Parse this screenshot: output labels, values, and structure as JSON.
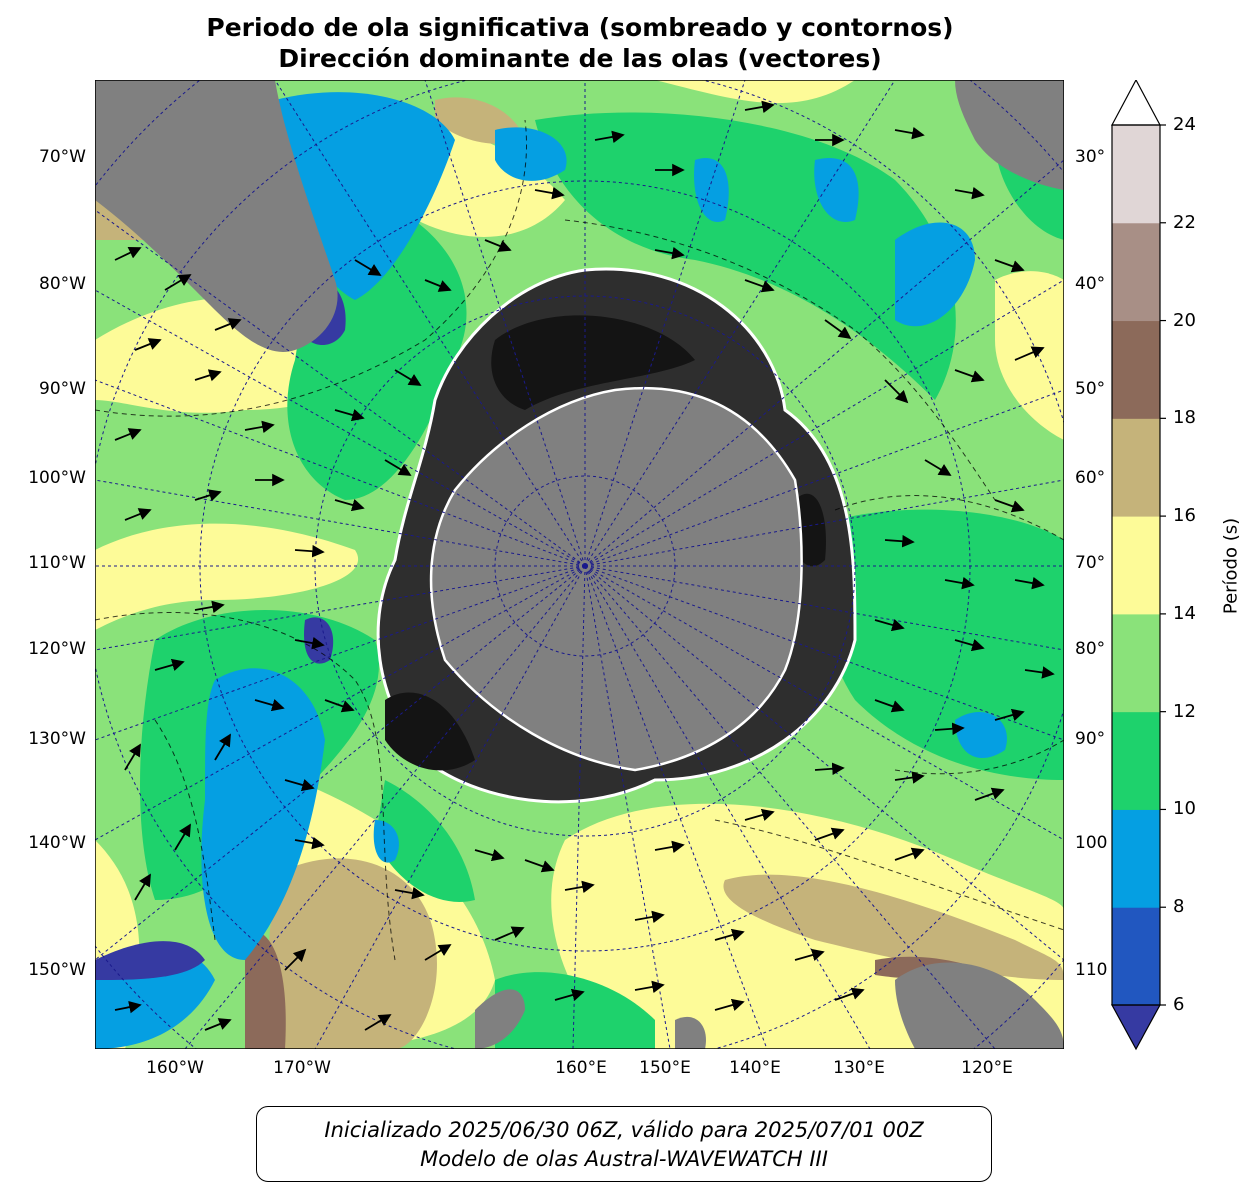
{
  "title": {
    "line1": "Periodo de ola significativa (sombreado y contornos)",
    "line2": "Dirección dominante de las olas (vectores)"
  },
  "map": {
    "projection": "south-polar-stereographic",
    "lat_labels_left": [
      "70°W",
      "80°W",
      "90°W",
      "100°W",
      "110°W",
      "120°W",
      "130°W",
      "140°W",
      "150°W"
    ],
    "lat_labels_right": [
      "30°",
      "40°",
      "50°",
      "60°",
      "70°",
      "80°",
      "90°",
      "100",
      "110"
    ],
    "lon_labels_bottom": [
      "160°W",
      "170°W",
      "160°E",
      "150°E",
      "140°E",
      "130°E",
      "120°E"
    ],
    "colors": {
      "land": "#808080",
      "ice_dark": "#161616",
      "grid": "#1a1a8c"
    }
  },
  "colorbar": {
    "label": "Período (s)",
    "ticks": [
      "6",
      "8",
      "10",
      "12",
      "14",
      "16",
      "18",
      "20",
      "22",
      "24"
    ],
    "levels": [
      6,
      8,
      10,
      12,
      14,
      16,
      18,
      20,
      22,
      24
    ],
    "colors": [
      "#2157c0",
      "#059fe2",
      "#1ed26c",
      "#8ae27a",
      "#fdfb98",
      "#c5b37a",
      "#8c6a5a",
      "#a88f86",
      "#e0d6d6"
    ],
    "under_color": "#363aa2",
    "over_color": "#ffffff"
  },
  "footer": {
    "line1": "Inicializado 2025/06/30 06Z, válido para 2025/07/01 00Z",
    "line2": "Modelo de olas Austral-WAVEWATCH III"
  }
}
